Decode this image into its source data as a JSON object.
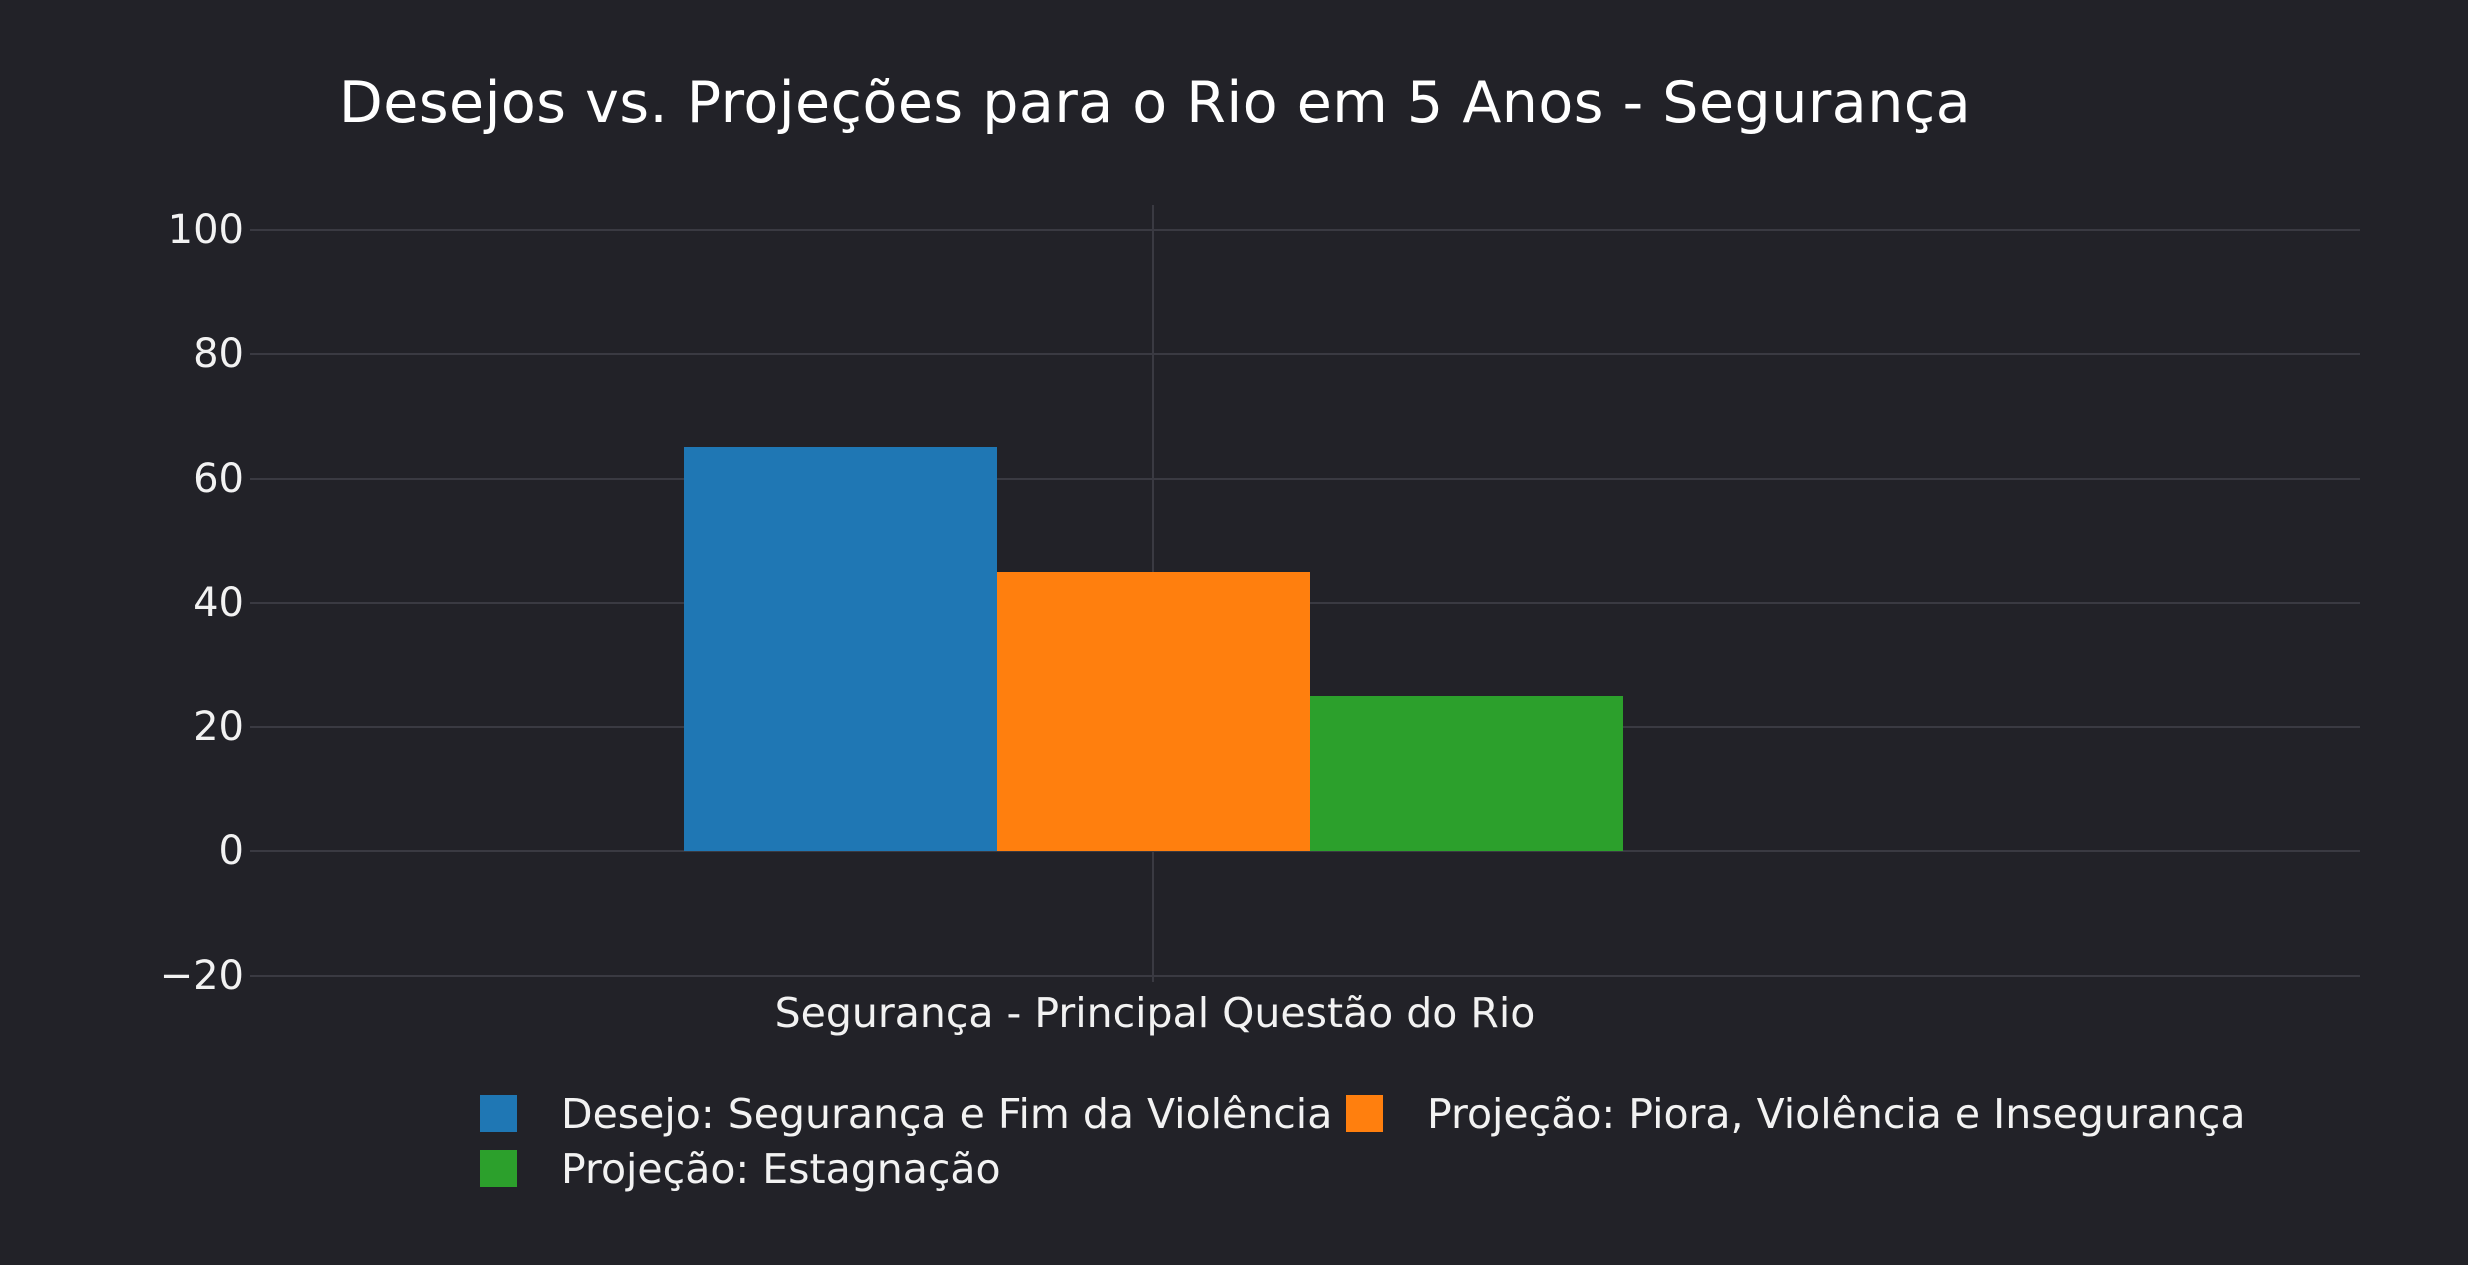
{
  "title": "Desejos vs. Projeções para o Rio em 5 Anos - Segurança",
  "colors": {
    "background": "#222228",
    "grid": "#3a3a42",
    "text": "#f2f2f2",
    "title_text": "#ffffff",
    "blue": "#1f77b4",
    "orange": "#ff7f0e",
    "green": "#2ca02c"
  },
  "chart_data": {
    "type": "bar",
    "title": "Desejos vs. Projeções para o Rio em 5 Anos - Segurança",
    "xlabel": "Segurança - Principal Questão do Rio",
    "ylabel": "",
    "categories": [
      "Segurança - Principal Questão do Rio"
    ],
    "series": [
      {
        "name": "Desejo: Segurança e Fim da Violência",
        "values": [
          65
        ],
        "color": "#1f77b4"
      },
      {
        "name": "Projeção: Piora, Violência e Insegurança",
        "values": [
          45
        ],
        "color": "#ff7f0e"
      },
      {
        "name": "Projeção: Estagnação",
        "values": [
          25
        ],
        "color": "#2ca02c"
      }
    ],
    "yticks": [
      100,
      80,
      60,
      40,
      20,
      0,
      -20
    ],
    "ylim": [
      -21,
      104
    ],
    "grid": true,
    "legend_position": "bottom"
  }
}
